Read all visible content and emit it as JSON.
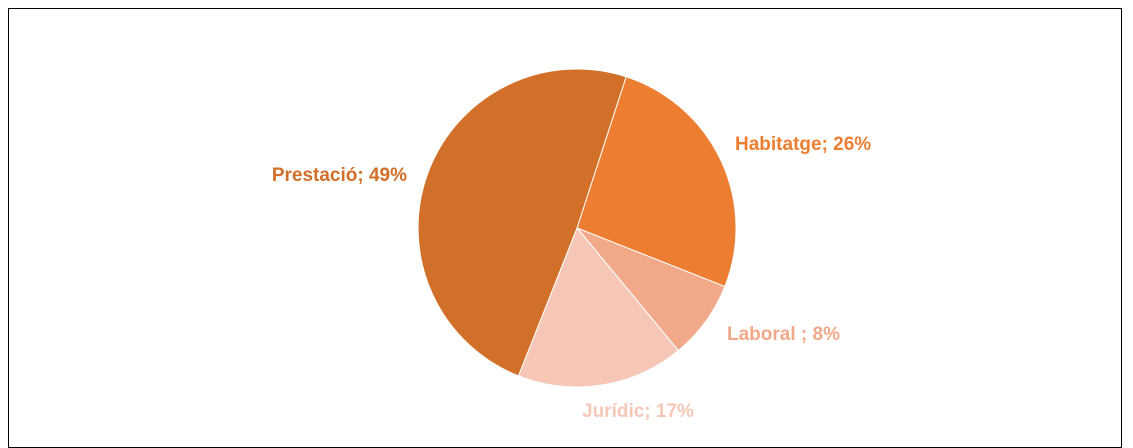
{
  "chart_data": {
    "type": "pie",
    "title": "",
    "start_angle_deg": 18,
    "direction": "clockwise",
    "slices": [
      {
        "category": "Habitatge",
        "value": 26,
        "label": "Habitatge; 26%",
        "color": "#ED7D31",
        "label_color": "#ED7D31"
      },
      {
        "category": "Laboral ",
        "value": 8,
        "label": "Laboral ; 8%",
        "color": "#F2A98A",
        "label_color": "#F2A98A"
      },
      {
        "category": "Jurídic",
        "value": 17,
        "label": "Jurídic; 17%",
        "color": "#F6C7B6",
        "label_color": "#F6C7B6"
      },
      {
        "category": "Prestació",
        "value": 49,
        "label": "Prestació; 49%",
        "color": "#D26F28",
        "label_color": "#D26F28"
      }
    ]
  }
}
